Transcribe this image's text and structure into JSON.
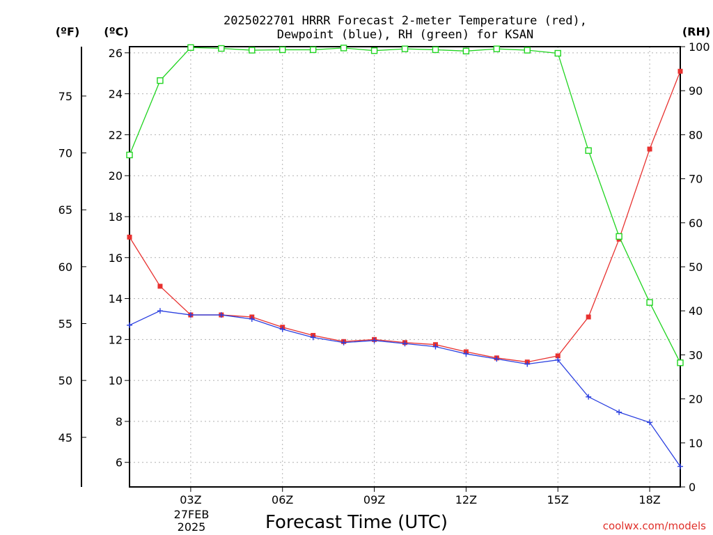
{
  "chart_data": {
    "type": "line",
    "title_line1": "2025022701 HRRR Forecast 2-meter Temperature (red),",
    "title_line2": "Dewpoint (blue), RH (green) for KSAN",
    "xlabel": "Forecast Time (UTC)",
    "date_label_line1": "27FEB",
    "date_label_line2": "2025",
    "credit": "coolwx.com/models",
    "unit_labels": {
      "fahrenheit": "(ºF)",
      "celsius": "(ºC)",
      "rh": "(RH)"
    },
    "x_hours": [
      1,
      2,
      3,
      4,
      5,
      6,
      7,
      8,
      9,
      10,
      11,
      12,
      13,
      14,
      15,
      16,
      17,
      18,
      19
    ],
    "x_ticks": [
      {
        "hour": 3,
        "label": "03Z"
      },
      {
        "hour": 6,
        "label": "06Z"
      },
      {
        "hour": 9,
        "label": "09Z"
      },
      {
        "hour": 12,
        "label": "12Z"
      },
      {
        "hour": 15,
        "label": "15Z"
      },
      {
        "hour": 18,
        "label": "18Z"
      }
    ],
    "xlim": [
      1,
      19
    ],
    "celsius_ylim": [
      4.8,
      26.3
    ],
    "celsius_ticks": [
      "6",
      "8",
      "10",
      "12",
      "14",
      "16",
      "18",
      "20",
      "22",
      "24",
      "26"
    ],
    "fahrenheit_ticks": [
      "45",
      "50",
      "55",
      "60",
      "65",
      "70",
      "75"
    ],
    "rh_ylim": [
      0,
      100
    ],
    "rh_ticks": [
      "0",
      "10",
      "20",
      "30",
      "40",
      "50",
      "60",
      "70",
      "80",
      "90",
      "100"
    ],
    "grid": true,
    "series": [
      {
        "name": "Temperature",
        "color": "#e8312f",
        "marker": "filled-square",
        "values": [
          17.0,
          14.6,
          13.2,
          13.2,
          13.1,
          12.6,
          12.2,
          11.9,
          12.0,
          11.85,
          11.75,
          11.4,
          11.1,
          10.9,
          11.2,
          13.1,
          16.9,
          21.3,
          25.1
        ]
      },
      {
        "name": "Dewpoint",
        "color": "#2a3fe0",
        "marker": "plus",
        "values": [
          12.7,
          13.4,
          13.2,
          13.2,
          13.0,
          12.5,
          12.1,
          11.85,
          11.95,
          11.8,
          11.65,
          11.3,
          11.05,
          10.8,
          11.0,
          9.2,
          8.45,
          7.95,
          5.8
        ]
      },
      {
        "name": "RH",
        "color": "#1fd41f",
        "marker": "open-square",
        "values": [
          75.4,
          92.3,
          99.8,
          99.6,
          99.2,
          99.3,
          99.3,
          99.7,
          99.1,
          99.5,
          99.3,
          99.0,
          99.5,
          99.2,
          98.5,
          76.4,
          56.9,
          41.9,
          28.2
        ]
      }
    ]
  }
}
